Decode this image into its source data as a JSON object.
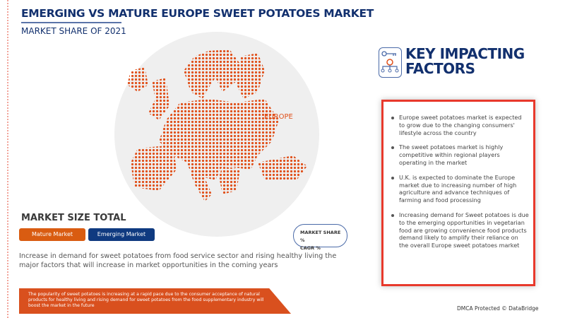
{
  "header": {
    "title": "EMERGING VS MATURE EUROPE SWEET POTATOES MARKET",
    "subtitle": "MARKET SHARE OF 2021"
  },
  "map": {
    "region_label": "EUROPE",
    "dot_color": "#e0501a"
  },
  "market_size": {
    "title": "MARKET SIZE TOTAL",
    "mature_label": "Mature Market",
    "emerging_label": "Emerging Market",
    "mature_color": "#d95c11",
    "emerging_color": "#0f3a80",
    "legend_line1": "MARKET SHARE %",
    "legend_line2": "CAGR %"
  },
  "description": "Increase in demand for sweet potatoes from food service sector and rising healthy living the major factors that will increase in market opportunities in the coming years",
  "banner": "The popularity of sweet potatoes is increasing at a rapid pace due to the consumer acceptance of natural products for healthy living and rising demand for sweet potatoes from the food supplementary industry will boost the market in the future",
  "factors": {
    "title_line1": "KEY IMPACTING",
    "title_line2": "FACTORS",
    "icon": "key-gear-network-icon",
    "items": [
      "Europe sweet potatoes market is expected to grow due to the changing consumers' lifestyle across the country",
      "The sweet potatoes market is highly competitive within regional players operating in the market",
      "U.K. is expected to dominate the Europe market due to increasing number of high agriculture and advance techniques of farming and food processing",
      "Increasing demand for Sweet potatoes is due to the emerging opportunities in vegetarian food are growing convenience food products demand likely to amplify their reliance on the overall Europe sweet potatoes  market"
    ]
  },
  "footer": {
    "dmca": "DMCA Protected © DataBridge"
  }
}
